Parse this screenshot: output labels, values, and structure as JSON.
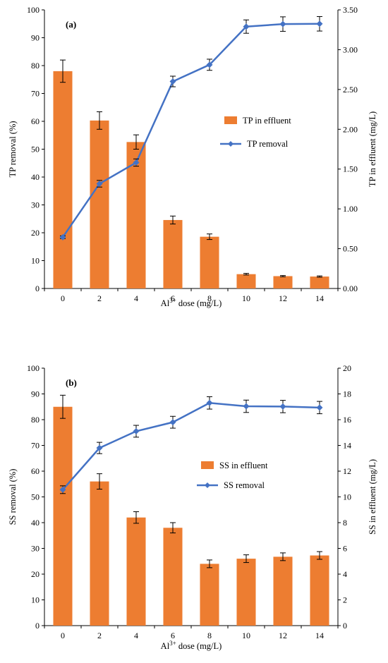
{
  "chart_data": [
    {
      "type": "bar",
      "panel_label": "(a)",
      "categories": [
        "0",
        "2",
        "4",
        "6",
        "8",
        "10",
        "12",
        "14"
      ],
      "xlabel_pre": "Al",
      "xlabel_sup": "3+",
      "xlabel_post": " dose (mg/L)",
      "ylabel_left": "TP removal (%)",
      "ylabel_right": "TP in effluent (mg/L)",
      "ylim_left": [
        0,
        100
      ],
      "ylim_right": [
        0,
        3.5
      ],
      "yticks_left": [
        "0",
        "10",
        "20",
        "30",
        "40",
        "50",
        "60",
        "70",
        "80",
        "90",
        "100"
      ],
      "yticks_right": [
        "0.00",
        "0.50",
        "1.00",
        "1.50",
        "2.00",
        "2.50",
        "3.00",
        "3.50"
      ],
      "legend_placement": "center-right",
      "series": [
        {
          "name": "TP in effluent",
          "kind": "bar",
          "axis": "right",
          "color": "#ED7D31",
          "values": [
            2.73,
            2.11,
            1.84,
            0.86,
            0.65,
            0.18,
            0.155,
            0.15
          ],
          "errors": [
            0.14,
            0.11,
            0.09,
            0.05,
            0.035,
            0.01,
            0.008,
            0.008
          ]
        },
        {
          "name": "TP removal",
          "kind": "line",
          "axis": "left",
          "color": "#4472C4",
          "values": [
            18.4,
            37.6,
            45.2,
            74.3,
            80.3,
            94.0,
            94.9,
            95.0
          ],
          "errors": [
            0.5,
            1.2,
            1.3,
            1.9,
            2.0,
            2.4,
            2.6,
            2.6
          ]
        }
      ]
    },
    {
      "type": "bar",
      "panel_label": "(b)",
      "categories": [
        "0",
        "2",
        "4",
        "6",
        "8",
        "10",
        "12",
        "14"
      ],
      "xlabel_pre": "Al",
      "xlabel_sup": "3+",
      "xlabel_post": " dose (mg/L)",
      "ylabel_left": "SS removal (%)",
      "ylabel_right": "SS in effluent (mg/L)",
      "ylim_left": [
        0,
        100
      ],
      "ylim_right": [
        0,
        20
      ],
      "yticks_left": [
        "0",
        "10",
        "20",
        "30",
        "40",
        "50",
        "60",
        "70",
        "80",
        "90",
        "100"
      ],
      "yticks_right": [
        "0",
        "2",
        "4",
        "6",
        "8",
        "10",
        "12",
        "14",
        "16",
        "18",
        "20"
      ],
      "legend_placement": "center-right",
      "series": [
        {
          "name": "SS in effluent",
          "kind": "bar",
          "axis": "right",
          "color": "#ED7D31",
          "values": [
            17.0,
            11.2,
            8.4,
            7.6,
            4.8,
            5.2,
            5.35,
            5.45
          ],
          "errors": [
            0.9,
            0.6,
            0.45,
            0.4,
            0.3,
            0.3,
            0.3,
            0.3
          ]
        },
        {
          "name": "SS removal",
          "kind": "line",
          "axis": "left",
          "color": "#4472C4",
          "values": [
            52.8,
            69.0,
            75.5,
            79.0,
            86.5,
            85.2,
            85.1,
            84.7
          ],
          "errors": [
            1.5,
            2.2,
            2.3,
            2.3,
            2.4,
            2.4,
            2.4,
            2.4
          ]
        }
      ]
    }
  ]
}
